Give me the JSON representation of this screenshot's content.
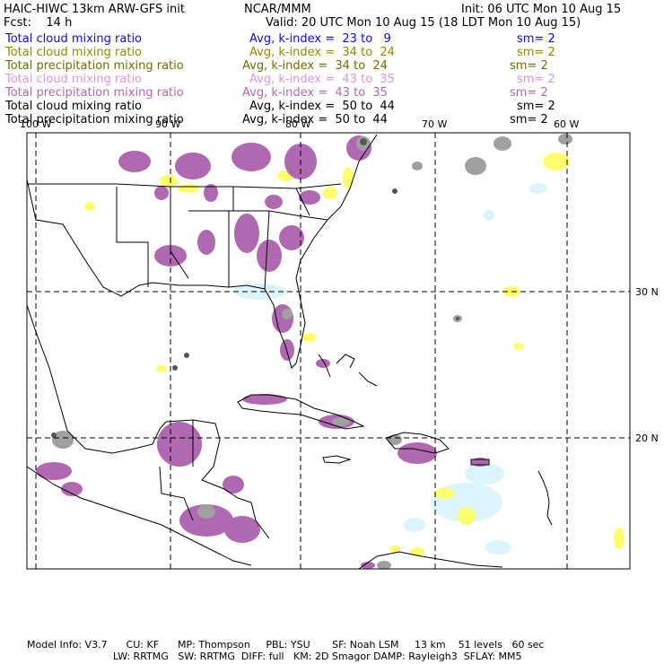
{
  "header": {
    "model_title": "HAIC-HIWC 13km ARW-GFS init",
    "institution": "NCAR/MMM",
    "init_time": "Init: 06 UTC Mon 10 Aug 15",
    "forecast_hour": "Fcst:    14 h",
    "valid_time": "Valid: 20 UTC Mon 10 Aug 15 (18 LDT Mon 10 Aug 15)"
  },
  "fields": [
    {
      "name": "Total cloud mixing ratio",
      "avg": "Avg, k-index =  23 to   9",
      "sm": "sm= 2",
      "color": "#1010c8"
    },
    {
      "name": "Total cloud mixing ratio",
      "avg": "Avg, k-index =  34 to  24",
      "sm": "sm= 2",
      "color": "#8c8c00"
    },
    {
      "name": "Total precipitation mixing ratio",
      "avg": "Avg, k-index =  34 to  24",
      "sm": "sm= 2",
      "color": "#6e6e00"
    },
    {
      "name": "Total cloud mixing ratio",
      "avg": "Avg, k-index =  43 to  35",
      "sm": "sm= 2",
      "color": "#d79ad7"
    },
    {
      "name": "Total precipitation mixing ratio",
      "avg": "Avg, k-index =  43 to  35",
      "sm": "sm= 2",
      "color": "#b069b0"
    },
    {
      "name": "Total cloud mixing ratio",
      "avg": "Avg, k-index =  50 to  44",
      "sm": "sm= 2",
      "color": "#000000"
    },
    {
      "name": "Total precipitation mixing ratio",
      "avg": "Avg, k-index =  50 to  44",
      "sm": "sm= 2",
      "color": "#000000"
    }
  ],
  "map": {
    "lon_labels": [
      "100 W",
      "90 W",
      "80 W",
      "70 W",
      "60 W"
    ],
    "lat_labels": [
      "30 N",
      "20 N"
    ],
    "colors": {
      "land_outline": "#000000",
      "grid": "#000000",
      "cloud_light_blue": "#dcf4fb",
      "cloud_yellow": "#ffff6e",
      "precip_purple": "#b069b0",
      "cloud_gray": "#a0a0a0",
      "dark_core": "#555555"
    }
  },
  "footer": {
    "line1": "Model Info: V3.7      CU: KF      MP: Thompson     PBL: YSU       SF: Noah LSM     13 km    51 levels   60 sec",
    "line2": "LW: RRTMG   SW: RRTMG  DIFF: full   KM: 2D Smagor DAMP: Rayleigh3  SFLAY: MM5"
  }
}
